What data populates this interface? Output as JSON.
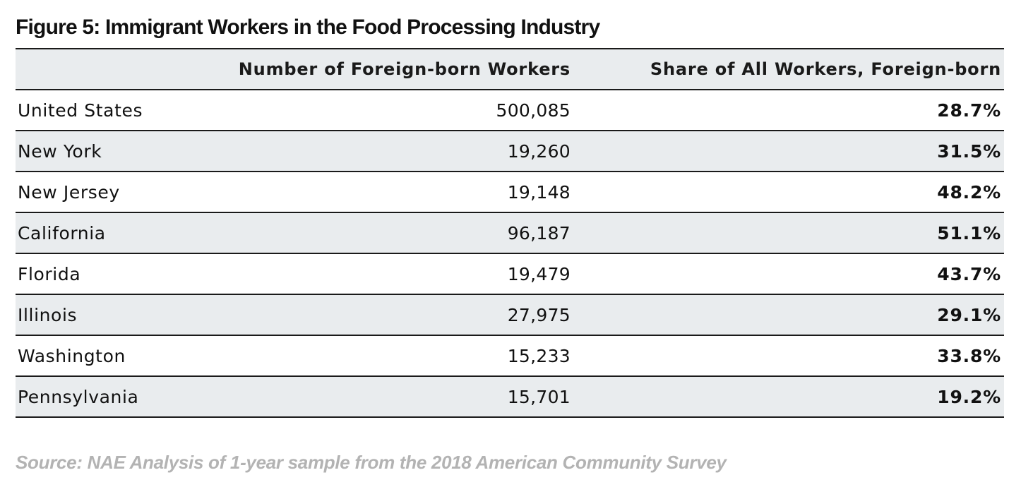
{
  "title": "Figure 5: Immigrant Workers in the Food Processing Industry",
  "table": {
    "headers": [
      "",
      "Number of Foreign-born Workers",
      "Share of All Workers, Foreign-born"
    ],
    "rows": [
      {
        "state": "United States",
        "workers": "500,085",
        "share": "28.7%"
      },
      {
        "state": "New York",
        "workers": "19,260",
        "share": "31.5%"
      },
      {
        "state": "New Jersey",
        "workers": "19,148",
        "share": "48.2%"
      },
      {
        "state": "California",
        "workers": "96,187",
        "share": "51.1%"
      },
      {
        "state": "Florida",
        "workers": "19,479",
        "share": "43.7%"
      },
      {
        "state": "Illinois",
        "workers": "27,975",
        "share": "29.1%"
      },
      {
        "state": "Washington",
        "workers": "15,233",
        "share": "33.8%"
      },
      {
        "state": "Pennsylvania",
        "workers": "15,701",
        "share": "19.2%"
      }
    ]
  },
  "source": "Source: NAE Analysis of 1-year sample from the 2018 American Community Survey",
  "colors": {
    "row_shade": "#e9ecee",
    "rule": "#1a1a1a",
    "source_text": "#b3b3b3"
  },
  "chart_data": {
    "type": "table",
    "title": "Figure 5: Immigrant Workers in the Food Processing Industry",
    "columns": [
      "",
      "Number of Foreign-born Workers",
      "Share of All Workers, Foreign-born"
    ],
    "categories": [
      "United States",
      "New York",
      "New Jersey",
      "California",
      "Florida",
      "Illinois",
      "Washington",
      "Pennsylvania"
    ],
    "series": [
      {
        "name": "Number of Foreign-born Workers",
        "values": [
          500085,
          19260,
          19148,
          96187,
          19479,
          27975,
          15233,
          15701
        ]
      },
      {
        "name": "Share of All Workers, Foreign-born",
        "values": [
          28.7,
          31.5,
          48.2,
          51.1,
          43.7,
          29.1,
          33.8,
          19.2
        ]
      }
    ]
  }
}
